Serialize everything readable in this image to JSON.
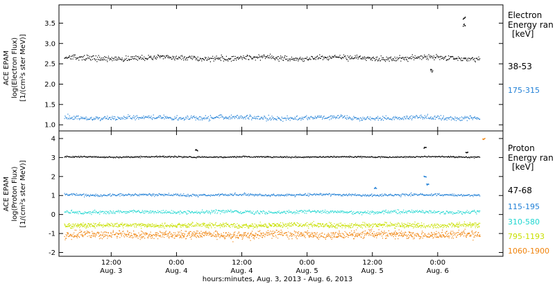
{
  "xaxis": {
    "ticks": [
      {
        "x": 0.5,
        "l1": "12:00",
        "l2": "Aug. 3"
      },
      {
        "x": 1.0,
        "l1": "0:00",
        "l2": "Aug. 4"
      },
      {
        "x": 1.5,
        "l1": "12:00",
        "l2": "Aug. 4"
      },
      {
        "x": 2.0,
        "l1": "0:00",
        "l2": "Aug. 5"
      },
      {
        "x": 2.5,
        "l1": "12:00",
        "l2": "Aug. 5"
      },
      {
        "x": 3.0,
        "l1": "0:00",
        "l2": "Aug. 6"
      }
    ],
    "label": "hours:minutes, Aug.  3, 2013 - Aug.  6, 2013"
  },
  "chart_data": [
    {
      "type": "scatter",
      "ylabel": [
        "ACE EPAM",
        "log(Electron Flux)",
        "[1/(cm²s ster MeV)]"
      ],
      "xlim": [
        0.1,
        3.5
      ],
      "ylim": [
        0.85,
        3.95
      ],
      "yticks": [
        "1.0",
        "1.5",
        "2.0",
        "2.5",
        "3.0",
        "3.5"
      ],
      "ytick_values": [
        1.0,
        1.5,
        2.0,
        2.5,
        3.0,
        3.5
      ],
      "legend_title": [
        "Electron",
        "Energy ran",
        "[keV]"
      ],
      "series": [
        {
          "name": "38-53",
          "color": "#000000",
          "level": 2.65,
          "spread": 0.07,
          "x_end": 3.32,
          "events": [
            {
              "x": 3.2,
              "y": 3.65
            },
            {
              "x": 3.2,
              "y": 3.45
            },
            {
              "x": 2.95,
              "y": 2.35
            }
          ]
        },
        {
          "name": "175-315",
          "color": "#1f7fd6",
          "level": 1.18,
          "spread": 0.06,
          "x_end": 3.32,
          "events": []
        }
      ]
    },
    {
      "type": "scatter",
      "ylabel": [
        "ACE EPAM",
        "log(Proton Flux)",
        "[1/(cm²s ster MeV)]"
      ],
      "xlim": [
        0.1,
        3.5
      ],
      "ylim": [
        -2.2,
        4.4
      ],
      "yticks": [
        "-2",
        "-1",
        "0",
        "1",
        "2",
        "3",
        "4"
      ],
      "ytick_values": [
        -2,
        -1,
        0,
        1,
        2,
        3,
        4
      ],
      "legend_title": [
        "Proton",
        "Energy ran",
        "[keV]"
      ],
      "series": [
        {
          "name": "47-68",
          "color": "#000000",
          "level": 3.05,
          "spread": 0.04,
          "x_end": 3.32,
          "events": [
            {
              "x": 1.15,
              "y": 3.4
            },
            {
              "x": 2.9,
              "y": 3.55
            },
            {
              "x": 3.22,
              "y": 3.3
            }
          ]
        },
        {
          "name": "115-195",
          "color": "#1f7fd6",
          "level": 1.05,
          "spread": 0.07,
          "x_end": 3.32,
          "events": [
            {
              "x": 2.9,
              "y": 2.0
            },
            {
              "x": 2.92,
              "y": 1.6
            },
            {
              "x": 2.52,
              "y": 1.4
            }
          ]
        },
        {
          "name": "310-580",
          "color": "#1ed6d0",
          "level": 0.15,
          "spread": 0.1,
          "x_end": 3.32,
          "events": []
        },
        {
          "name": "795-1193",
          "color": "#c8e000",
          "level": -0.55,
          "spread": 0.14,
          "x_end": 3.32,
          "events": []
        },
        {
          "name": "1060-1900",
          "color": "#f0820a",
          "level": -1.05,
          "spread": 0.22,
          "x_end": 3.32,
          "events": [
            {
              "x": 3.35,
              "y": 4.0
            }
          ]
        }
      ]
    }
  ]
}
